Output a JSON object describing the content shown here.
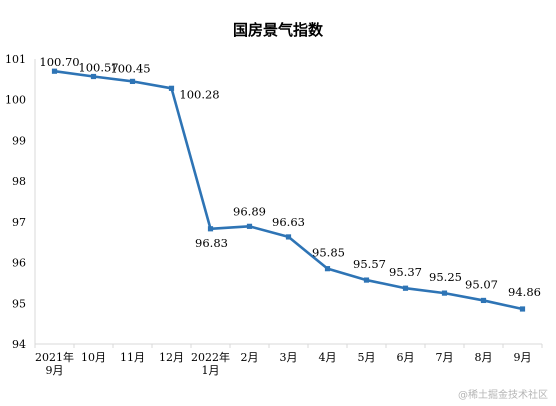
{
  "chart_data": {
    "type": "line",
    "title": "国房景气指数",
    "categories": [
      [
        "2021年",
        "9月"
      ],
      [
        "10月"
      ],
      [
        "11月"
      ],
      [
        "12月"
      ],
      [
        "2022年",
        "1月"
      ],
      [
        "2月"
      ],
      [
        "3月"
      ],
      [
        "4月"
      ],
      [
        "5月"
      ],
      [
        "6月"
      ],
      [
        "7月"
      ],
      [
        "8月"
      ],
      [
        "9月"
      ]
    ],
    "series": [
      {
        "values": [
          100.7,
          100.57,
          100.45,
          100.28,
          96.83,
          96.89,
          96.63,
          95.85,
          95.57,
          95.37,
          95.25,
          95.07,
          94.86
        ],
        "labels": [
          "100.70",
          "100.57",
          "100.45",
          "100.28",
          "96.83",
          "96.89",
          "96.63",
          "95.85",
          "95.57",
          "95.37",
          "95.25",
          "95.07",
          "94.86"
        ],
        "color": "#2e74b5"
      }
    ],
    "ylim": [
      94,
      101
    ],
    "yticks": [
      "94",
      "95",
      "96",
      "97",
      "98",
      "99",
      "100",
      "101"
    ],
    "grid": false,
    "legend": "none"
  },
  "watermark": "@稀土掘金技术社区"
}
